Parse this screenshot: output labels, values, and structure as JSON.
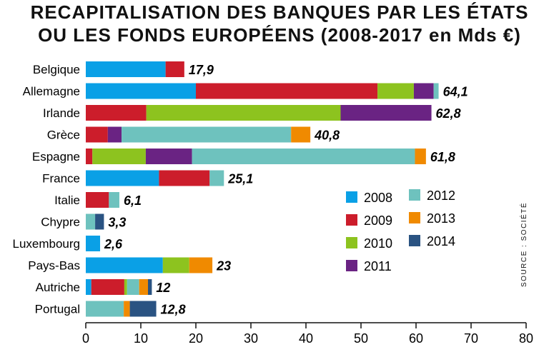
{
  "title_line1": "RECAPITALISATION DES BANQUES PAR LES ÉTATS",
  "title_line2": "OU LES FONDS EUROPÉENS (2008-2017 en Mds €)",
  "source": "SOURCE : SOCIÉTÉ",
  "chart_data": {
    "type": "bar",
    "orientation": "horizontal",
    "stacked": true,
    "title": "RECAPITALISATION DES BANQUES PAR LES ÉTATS OU LES FONDS EUROPÉENS (2008-2017 en Mds €)",
    "categories": [
      "Belgique",
      "Allemagne",
      "Irlande",
      "Grèce",
      "Espagne",
      "France",
      "Italie",
      "Chypre",
      "Luxembourg",
      "Pays-Bas",
      "Autriche",
      "Portugal"
    ],
    "totals_labels": [
      "17,9",
      "64,1",
      "62,8",
      "40,8",
      "61,8",
      "25,1",
      "6,1",
      "3,3",
      "2,6",
      "23",
      "12",
      "12,8"
    ],
    "series": [
      {
        "name": "2008",
        "color": "#0aa0e6",
        "values": [
          14.5,
          20,
          0,
          0,
          0,
          13.3,
          0,
          0,
          2.6,
          14,
          1,
          0
        ]
      },
      {
        "name": "2009",
        "color": "#cc1d2b",
        "values": [
          3.4,
          33,
          11,
          4,
          1.2,
          9.2,
          4.2,
          0,
          0,
          0,
          6,
          0
        ]
      },
      {
        "name": "2010",
        "color": "#8dc31f",
        "values": [
          0,
          6.6,
          35.3,
          0,
          9.7,
          0,
          0,
          0,
          0,
          4.8,
          0.5,
          0
        ]
      },
      {
        "name": "2011",
        "color": "#6a2383",
        "values": [
          0,
          3.6,
          16.5,
          2.5,
          8.4,
          0,
          0,
          0,
          0,
          0,
          0,
          0
        ]
      },
      {
        "name": "2012",
        "color": "#6ec2be",
        "values": [
          0,
          0.9,
          0,
          30.8,
          40.5,
          2.6,
          1.9,
          1.7,
          0,
          0,
          2.2,
          6.9
        ]
      },
      {
        "name": "2013",
        "color": "#f08a00",
        "values": [
          0,
          0,
          0,
          3.5,
          2,
          0,
          0,
          0,
          0,
          4.2,
          1.6,
          1.1
        ]
      },
      {
        "name": "2014",
        "color": "#2a5382",
        "values": [
          0,
          0,
          0,
          0,
          0,
          0,
          0,
          1.6,
          0,
          0,
          0.7,
          4.8
        ]
      }
    ],
    "xlim": [
      0,
      80
    ],
    "xticks": [
      0,
      10,
      20,
      30,
      40,
      50,
      60,
      70,
      80
    ],
    "legend_position": "right-middle",
    "grid": false
  }
}
